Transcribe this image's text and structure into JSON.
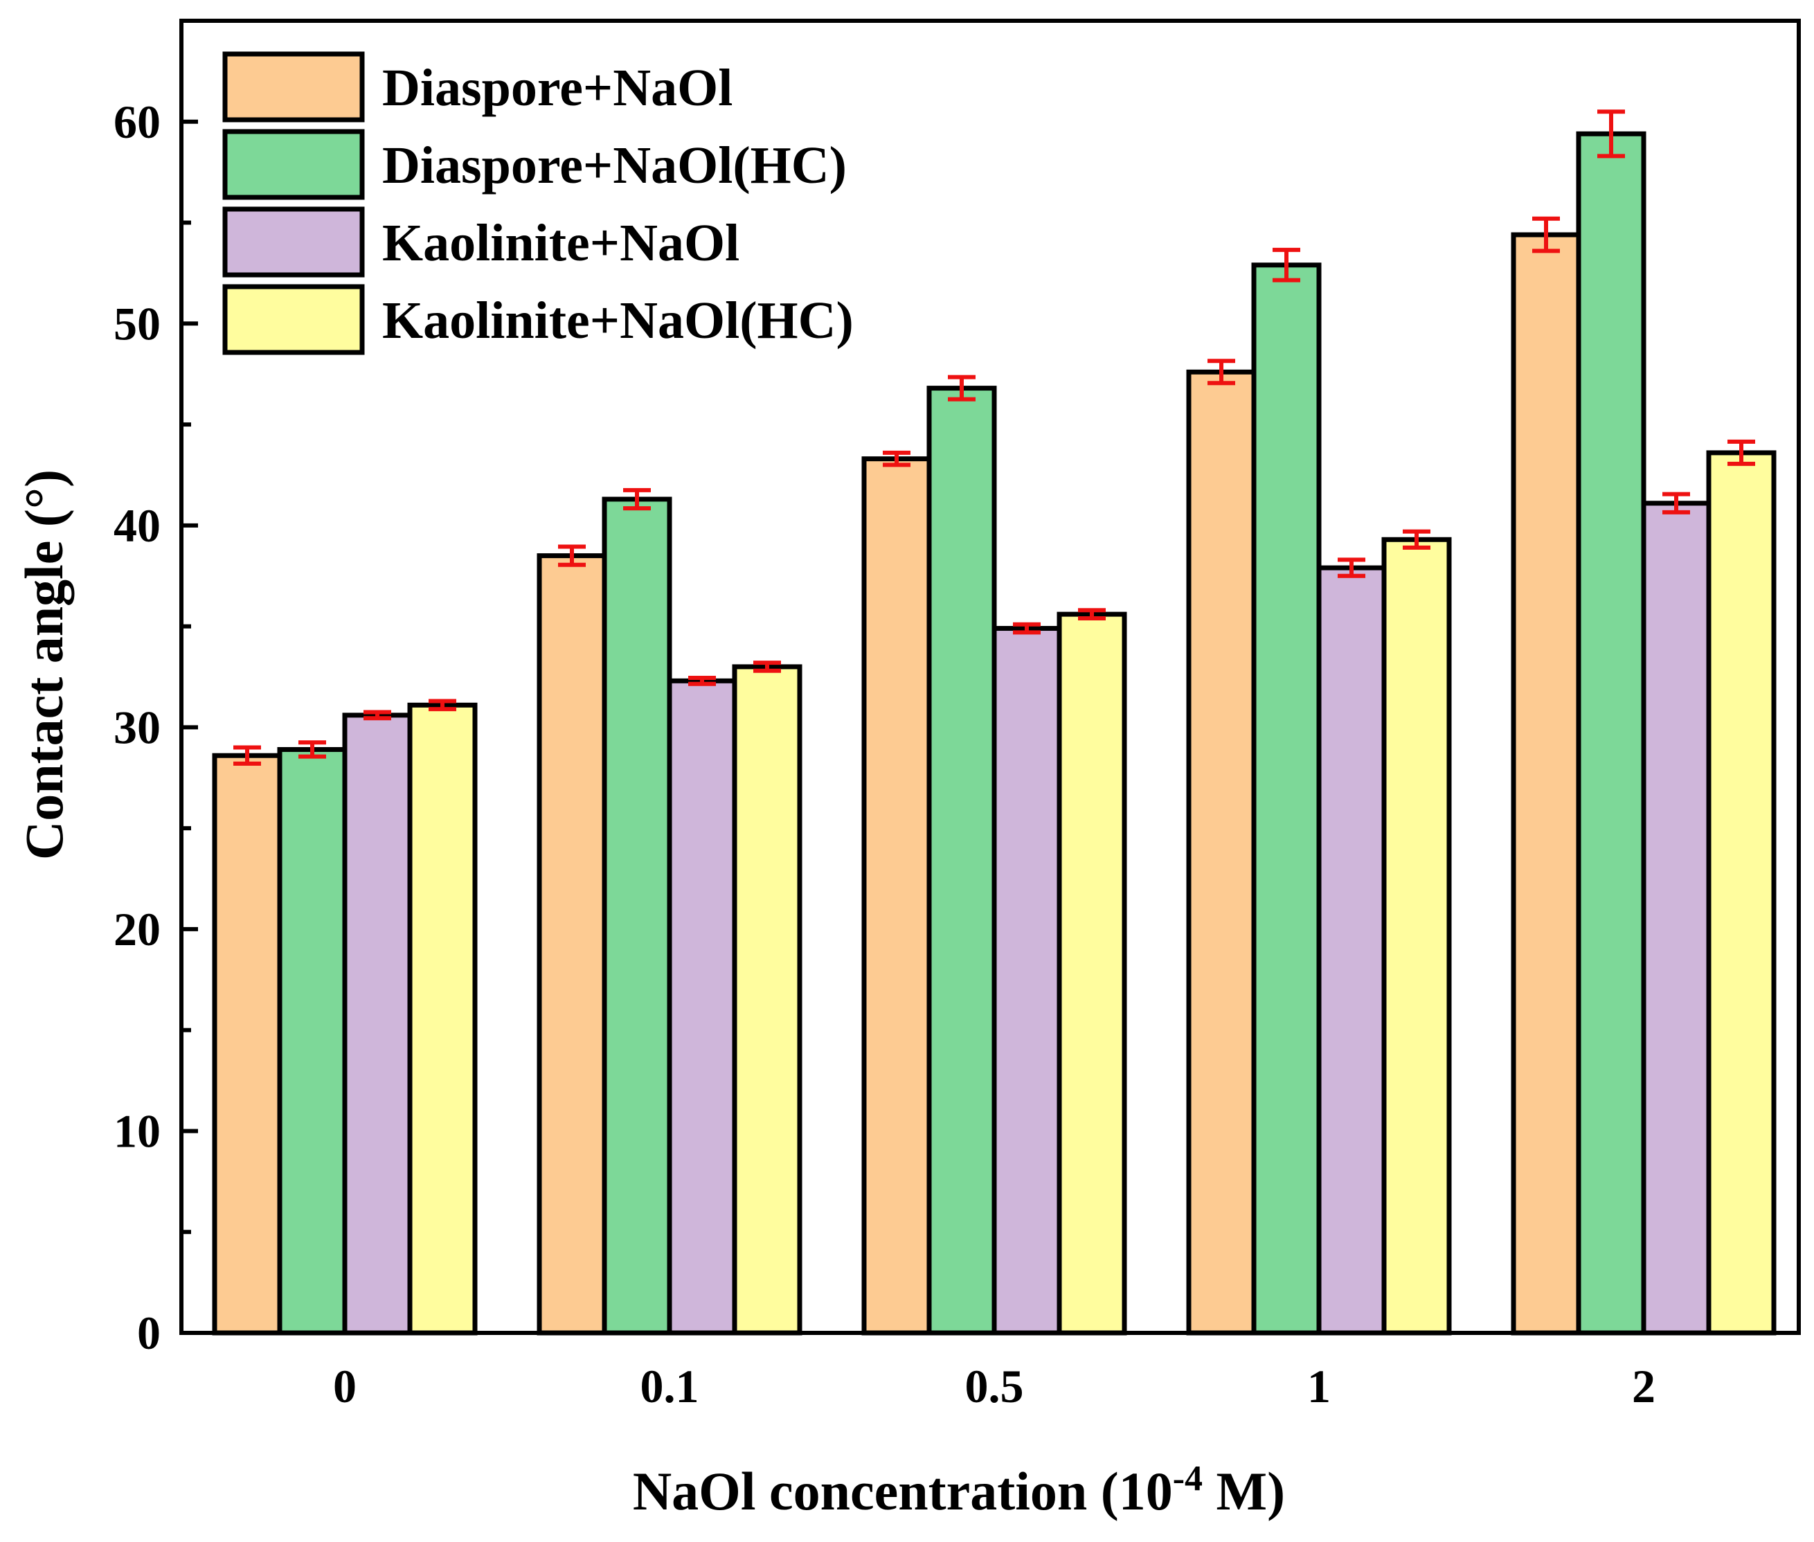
{
  "chart_data": {
    "type": "bar",
    "title": "",
    "xlabel": "NaOl concentration (10",
    "xlabel_superscript": "-4",
    "xlabel_suffix": " M)",
    "ylabel": "Contact angle (°)",
    "ylim": [
      0,
      65
    ],
    "yticks": [
      0,
      10,
      20,
      30,
      40,
      50,
      60
    ],
    "categories": [
      "0",
      "0.1",
      "0.5",
      "1",
      "2"
    ],
    "series": [
      {
        "name": "Diaspore+NaOl",
        "color": "#FDCB92",
        "values": [
          28.6,
          38.5,
          43.3,
          47.6,
          54.4
        ],
        "errors": [
          0.4,
          0.45,
          0.3,
          0.55,
          0.8
        ]
      },
      {
        "name": "Diaspore+NaOl(HC)",
        "color": "#7DD898",
        "values": [
          28.9,
          41.3,
          46.8,
          52.9,
          59.4
        ],
        "errors": [
          0.35,
          0.45,
          0.55,
          0.75,
          1.1
        ]
      },
      {
        "name": "Kaolinite+NaOl",
        "color": "#CFB6DA",
        "values": [
          30.6,
          32.3,
          34.9,
          37.9,
          41.1
        ],
        "errors": [
          0.15,
          0.15,
          0.2,
          0.4,
          0.45
        ]
      },
      {
        "name": "Kaolinite+NaOl(HC)",
        "color": "#FFFD9E",
        "values": [
          31.1,
          33.0,
          35.6,
          39.3,
          43.6
        ],
        "errors": [
          0.2,
          0.2,
          0.2,
          0.4,
          0.55
        ]
      }
    ],
    "error_bar_color": "#EE1111",
    "legend_position": "top-left",
    "grid": false
  }
}
